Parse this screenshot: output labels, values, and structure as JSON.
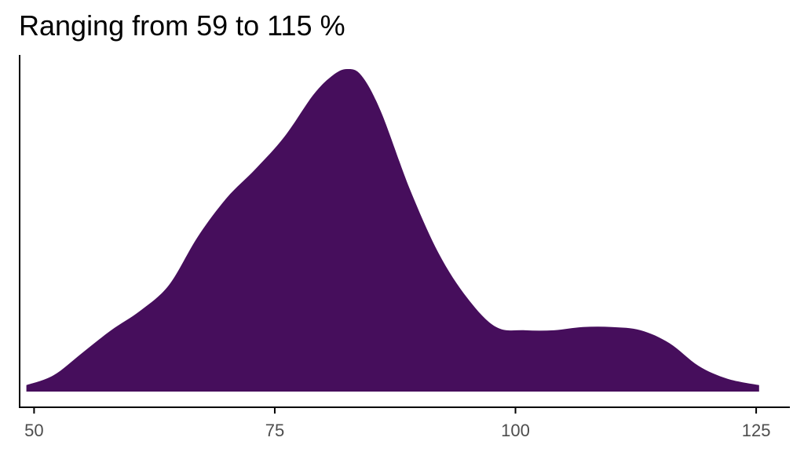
{
  "chart_data": {
    "type": "area",
    "title": "Ranging from 59 to 115 %",
    "xlabel": "",
    "ylabel": "",
    "xlim": [
      48.5,
      128.5
    ],
    "ylim": [
      0,
      1
    ],
    "x_ticks": [
      50,
      75,
      100,
      125
    ],
    "x_tick_labels": [
      "50",
      "75",
      "100",
      "125"
    ],
    "grid": false,
    "legend": "none",
    "fill_color": "#460e5c",
    "series": [
      {
        "x": [
          49.2,
          52,
          55,
          58,
          61,
          64,
          67,
          70,
          73,
          76,
          79,
          81,
          82.5,
          84,
          86,
          89,
          92,
          95,
          98,
          101,
          104,
          107,
          110,
          113,
          116,
          119,
          122,
          125.3
        ],
        "y": [
          0.02,
          0.05,
          0.12,
          0.19,
          0.25,
          0.33,
          0.48,
          0.6,
          0.69,
          0.79,
          0.92,
          0.98,
          1.0,
          0.98,
          0.87,
          0.63,
          0.43,
          0.29,
          0.2,
          0.19,
          0.19,
          0.2,
          0.2,
          0.19,
          0.15,
          0.08,
          0.04,
          0.02
        ]
      }
    ]
  }
}
